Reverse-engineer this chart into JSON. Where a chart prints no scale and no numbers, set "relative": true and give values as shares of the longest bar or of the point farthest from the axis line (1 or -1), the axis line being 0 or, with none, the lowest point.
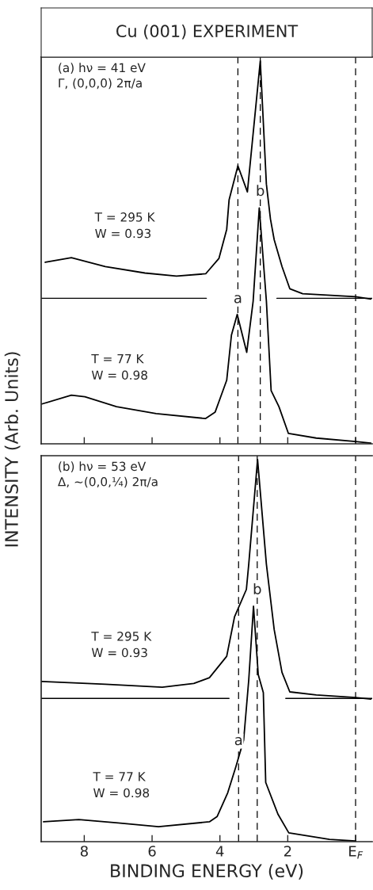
{
  "chart_data": [
    {
      "type": "line",
      "title": "Cu (001) EXPERIMENT",
      "subtitle": "(a) hν = 41 eV\nΓ, (0,0,0) 2π/a",
      "ylabel": "INTENSITY (Arb. Units)",
      "relative": true,
      "tick_labels": false,
      "xlim": [
        9.27,
        -0.49
      ],
      "xticks": [
        8,
        6,
        4,
        2,
        0
      ],
      "series": [
        {
          "name": "T = 295 K\nW = 0.93",
          "color": "#000000",
          "x": [
            9.15,
            8.38,
            7.38,
            6.21,
            5.28,
            4.42,
            4.03,
            3.8,
            3.73,
            3.47,
            3.19,
            2.81,
            2.63,
            2.51,
            2.4,
            2.17,
            1.94,
            1.56,
            0.0,
            -0.45
          ],
          "values": [
            0.474,
            0.486,
            0.463,
            0.446,
            0.438,
            0.444,
            0.484,
            0.56,
            0.637,
            0.726,
            0.658,
            1.0,
            0.678,
            0.587,
            0.533,
            0.463,
            0.405,
            0.392,
            0.384,
            0.378
          ]
        },
        {
          "color": "#000000",
          "x": [
            9.27,
            4.4,
            3.3,
            2.32,
            -0.49
          ],
          "values": [
            0.38,
            0.38,
            null,
            0.38,
            0.38
          ]
        },
        {
          "name": "T = 77 K\nW = 0.98",
          "color": "#000000",
          "x": [
            9.25,
            8.38,
            7.98,
            7.05,
            5.88,
            4.42,
            4.14,
            3.8,
            3.66,
            3.49,
            3.21,
            3.02,
            2.84,
            2.63,
            2.49,
            2.26,
            1.98,
            1.16,
            0.0,
            -0.45
          ],
          "values": [
            0.104,
            0.127,
            0.123,
            0.097,
            0.079,
            0.066,
            0.083,
            0.166,
            0.284,
            0.338,
            0.239,
            0.373,
            0.616,
            0.373,
            0.139,
            0.097,
            0.027,
            0.015,
            0.006,
            0.002
          ]
        }
      ],
      "ref_lines": [
        {
          "axis": "x",
          "value": 3.47,
          "color": "#000000",
          "line_style": "dashed"
        },
        {
          "axis": "x",
          "value": 2.81,
          "color": "#000000",
          "line_style": "dashed"
        },
        {
          "axis": "x",
          "value": 0,
          "color": "#000000",
          "line_style": "dashed"
        }
      ],
      "annotations": [
        {
          "text": "b",
          "x": 2.81,
          "y": 0.64
        },
        {
          "text": "a",
          "x": 3.47,
          "y": 0.36
        }
      ]
    },
    {
      "type": "line",
      "subtitle": "(b) hν = 53 eV\nΔ, ~(0,0,¼) 2π/a",
      "xlabel": "BINDING ENERGY (eV)",
      "relative": true,
      "tick_labels": "x",
      "xlim": [
        9.27,
        -0.49
      ],
      "xticks": [
        8,
        6,
        4,
        2,
        {
          "value": 0,
          "label": "E$_{F}$"
        }
      ],
      "series": [
        {
          "name": "T = 295 K\nW = 0.93",
          "color": "#000000",
          "x": [
            9.25,
            7.38,
            5.7,
            4.77,
            4.31,
            3.8,
            3.57,
            3.22,
            3.15,
            2.89,
            2.63,
            2.4,
            2.17,
            1.94,
            1.16,
            0.0,
            -0.45
          ],
          "values": [
            0.419,
            0.412,
            0.404,
            0.414,
            0.429,
            0.485,
            0.588,
            0.66,
            0.726,
            1.0,
            0.726,
            0.555,
            0.443,
            0.392,
            0.384,
            0.377,
            0.373
          ]
        },
        {
          "color": "#000000",
          "x": [
            9.27,
            3.73,
            3.0,
            2.06,
            -0.49
          ],
          "values": [
            0.375,
            0.375,
            null,
            0.375,
            0.375
          ]
        },
        {
          "name": "T = 77 K\nW = 0.98",
          "color": "#000000",
          "x": [
            9.2,
            8.16,
            7.0,
            5.81,
            4.31,
            4.08,
            3.77,
            3.53,
            3.3,
            3.15,
            3.01,
            2.87,
            2.72,
            2.65,
            2.29,
            1.97,
            0.77,
            0.0
          ],
          "values": [
            0.052,
            0.058,
            0.049,
            0.039,
            0.052,
            0.066,
            0.128,
            0.196,
            0.266,
            0.423,
            0.616,
            0.437,
            0.39,
            0.155,
            0.072,
            0.023,
            0.006,
            0.002
          ]
        }
      ],
      "ref_lines": [
        {
          "axis": "x",
          "value": 3.45,
          "color": "#000000",
          "line_style": "dashed"
        },
        {
          "axis": "x",
          "value": 2.9,
          "color": "#000000",
          "line_style": "dashed"
        },
        {
          "axis": "x",
          "value": 0,
          "color": "#000000",
          "line_style": "dashed"
        }
      ],
      "annotations": [
        {
          "text": "b",
          "x": 2.9,
          "y": 0.64
        },
        {
          "text": "a",
          "x": 3.45,
          "y": 0.245
        }
      ]
    }
  ]
}
